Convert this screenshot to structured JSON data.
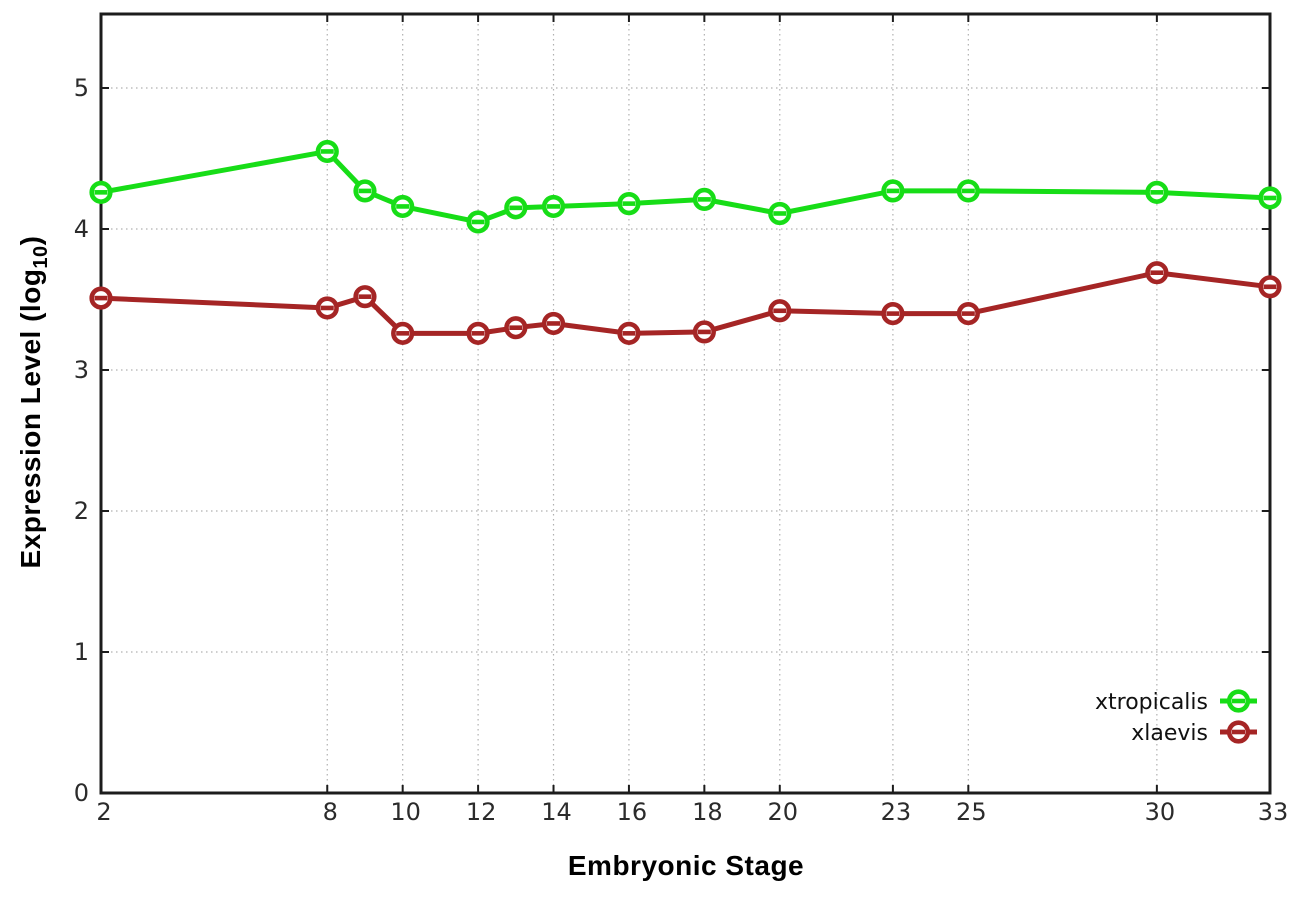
{
  "figure": {
    "background_color": "#ffffff",
    "ylabel_display": {
      "prefix": "Expression Level (log",
      "sub": "10",
      "suffix": ")"
    }
  },
  "chart_data": {
    "type": "line",
    "title": "",
    "xlabel": "Embryonic Stage",
    "ylabel": "Expression Level (log10)",
    "x": [
      2,
      8,
      9,
      10,
      12,
      13,
      14,
      16,
      18,
      20,
      23,
      25,
      30,
      33
    ],
    "series": [
      {
        "name": "xtropicalis",
        "color": "#17dd17",
        "values": [
          4.26,
          4.55,
          4.27,
          4.16,
          4.05,
          4.15,
          4.16,
          4.18,
          4.21,
          4.11,
          4.27,
          4.27,
          4.26,
          4.22
        ]
      },
      {
        "name": "xlaevis",
        "color": "#a52525",
        "values": [
          3.51,
          3.44,
          3.52,
          3.26,
          3.26,
          3.3,
          3.33,
          3.26,
          3.27,
          3.42,
          3.4,
          3.4,
          3.69,
          3.59
        ]
      }
    ],
    "xticks": [
      2,
      8,
      10,
      12,
      14,
      16,
      18,
      20,
      23,
      25,
      30,
      33
    ],
    "yticks": [
      0,
      1,
      2,
      3,
      4,
      5
    ],
    "xlim": [
      2,
      33
    ],
    "ylim": [
      0,
      5.5
    ],
    "grid": true,
    "grid_style": "dotted",
    "legend_position": "bottom-right",
    "marker": "open-circle",
    "axis_color": "#1c1c1c",
    "grid_color": "#b0b0b0",
    "tick_label_color": "#2b2b2b",
    "legend_text_color": "#111111"
  }
}
